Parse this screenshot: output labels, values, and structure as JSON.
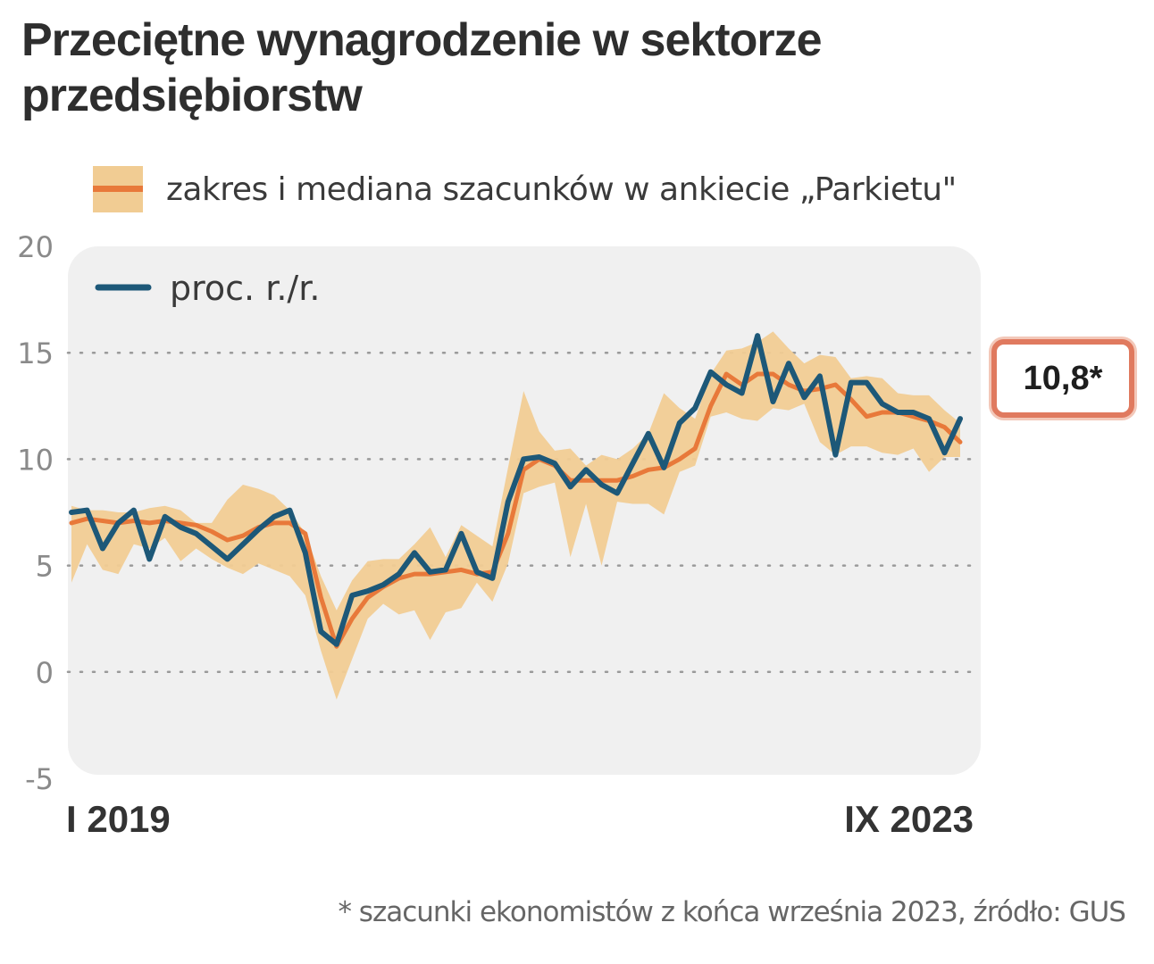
{
  "title": "Przeciętne wynagrodzenie w sektorze przedsiębiorstw",
  "legend": {
    "band": "zakres i mediana szacunków w ankiecie „Parkietu\"",
    "line": "proc. r./r."
  },
  "badge": "10,8*",
  "footnote": "* szacunki ekonomistów z końca września 2023, źródło: GUS",
  "colors": {
    "band": "#f1cc93",
    "median": "#e8793a",
    "line": "#1d5878",
    "panel": "#f0f0f0",
    "badge_border": "#e07a5f"
  },
  "chart_data": {
    "type": "line",
    "title": "Przeciętne wynagrodzenie w sektorze przedsiębiorstw",
    "ylabel": "proc. r./r.",
    "ylim": [
      -5,
      20
    ],
    "yticks": [
      -5,
      0,
      5,
      10,
      15,
      20
    ],
    "x_start_label": "I 2019",
    "x_end_label": "IX 2023",
    "grid": true,
    "legend_position": "top-left",
    "series": [
      {
        "name": "proc. r./r.",
        "values": [
          7.5,
          7.6,
          5.8,
          7.0,
          7.6,
          5.3,
          7.3,
          6.8,
          6.5,
          5.9,
          5.3,
          6.0,
          6.7,
          7.3,
          7.6,
          5.6,
          1.9,
          1.3,
          3.6,
          3.8,
          4.1,
          4.6,
          5.6,
          4.7,
          4.8,
          6.5,
          4.7,
          4.4,
          8.0,
          10.0,
          10.1,
          9.8,
          8.7,
          9.5,
          8.8,
          8.4,
          9.8,
          11.2,
          9.6,
          11.7,
          12.4,
          14.1,
          13.5,
          13.1,
          15.8,
          12.7,
          14.5,
          12.9,
          13.9,
          10.2,
          13.6,
          13.6,
          12.6,
          12.2,
          12.2,
          11.9,
          10.3,
          11.9
        ]
      },
      {
        "name": "mediana szacunków",
        "values": [
          7.0,
          7.2,
          7.1,
          7.0,
          7.1,
          7.0,
          7.1,
          7.0,
          6.9,
          6.6,
          6.2,
          6.4,
          6.8,
          7.0,
          7.0,
          6.5,
          3.5,
          1.2,
          2.5,
          3.5,
          4.0,
          4.4,
          4.6,
          4.6,
          4.7,
          4.8,
          4.6,
          4.7,
          6.5,
          9.5,
          10.0,
          9.7,
          9.0,
          9.0,
          9.0,
          9.0,
          9.2,
          9.5,
          9.6,
          10.0,
          10.5,
          12.5,
          14.0,
          13.5,
          14.0,
          14.0,
          13.5,
          13.2,
          13.3,
          13.5,
          12.8,
          12.0,
          12.2,
          12.2,
          12.0,
          11.8,
          11.5,
          10.8
        ]
      },
      {
        "name": "zakres szacunków",
        "low": [
          4.2,
          6.0,
          4.8,
          4.6,
          6.0,
          5.8,
          6.3,
          5.2,
          5.8,
          5.3,
          4.9,
          4.6,
          5.1,
          4.8,
          4.5,
          3.6,
          1.0,
          -1.3,
          0.6,
          2.5,
          3.2,
          2.7,
          2.9,
          1.5,
          2.8,
          3.0,
          4.2,
          3.3,
          5.1,
          8.4,
          8.7,
          8.9,
          5.4,
          7.9,
          5.0,
          8.0,
          7.9,
          7.9,
          7.4,
          9.4,
          9.7,
          12.0,
          12.2,
          11.9,
          11.8,
          12.4,
          12.3,
          12.6,
          10.8,
          10.2,
          10.6,
          10.6,
          10.3,
          10.2,
          10.5,
          9.4,
          10.1,
          10.1
        ],
        "high": [
          7.8,
          7.6,
          7.6,
          7.5,
          7.5,
          7.7,
          7.8,
          7.6,
          7.0,
          7.0,
          8.1,
          8.8,
          8.6,
          8.3,
          7.6,
          6.5,
          4.5,
          2.9,
          4.3,
          5.2,
          5.3,
          5.3,
          6.0,
          6.8,
          5.4,
          6.9,
          6.4,
          5.9,
          9.6,
          13.2,
          11.3,
          10.4,
          10.5,
          9.7,
          10.2,
          10.0,
          10.5,
          11.2,
          13.1,
          12.4,
          11.9,
          14.0,
          15.1,
          15.2,
          15.5,
          16.0,
          15.2,
          14.5,
          14.9,
          14.8,
          13.8,
          13.9,
          13.8,
          13.1,
          13.0,
          13.0,
          12.3,
          11.7
        ]
      }
    ]
  }
}
